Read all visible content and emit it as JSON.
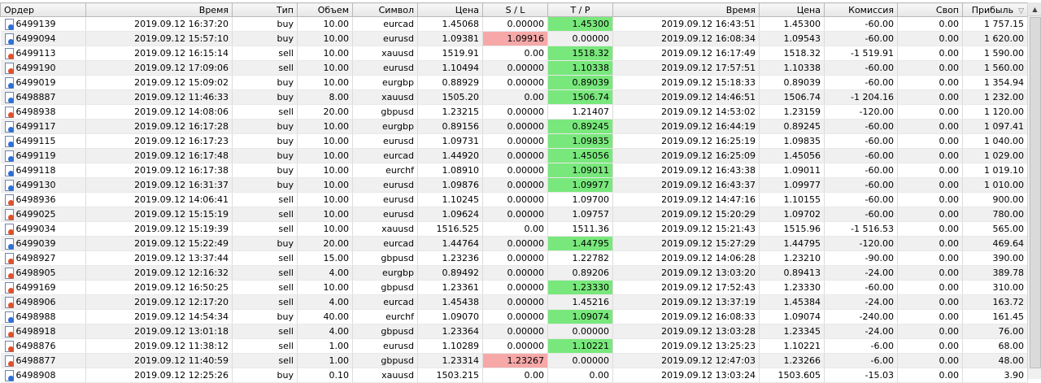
{
  "columns": {
    "order": "Ордер",
    "open_time": "Время",
    "type": "Тип",
    "volume": "Объем",
    "symbol": "Символ",
    "open_price": "Цена",
    "sl": "S / L",
    "tp": "T / P",
    "close_time": "Время",
    "close_price": "Цена",
    "commission": "Комиссия",
    "swap": "Своп",
    "profit": "Прибыль"
  },
  "sort_indicator": "▽",
  "scroll_up_glyph": "▲",
  "rows": [
    {
      "order": "6499139",
      "open_time": "2019.09.12 16:37:20",
      "type": "buy",
      "volume": "10.00",
      "symbol": "eurcad",
      "open_price": "1.45068",
      "sl": "0.00000",
      "tp": "1.45300",
      "close_time": "2019.09.12 16:43:51",
      "close_price": "1.45300",
      "commission": "-60.00",
      "swap": "0.00",
      "profit": "1 757.15",
      "tp_hit": true,
      "sl_hit": false
    },
    {
      "order": "6499094",
      "open_time": "2019.09.12 15:57:10",
      "type": "buy",
      "volume": "10.00",
      "symbol": "eurusd",
      "open_price": "1.09381",
      "sl": "1.09916",
      "tp": "0.00000",
      "close_time": "2019.09.12 16:08:34",
      "close_price": "1.09543",
      "commission": "-60.00",
      "swap": "0.00",
      "profit": "1 620.00",
      "tp_hit": false,
      "sl_hit": true
    },
    {
      "order": "6499113",
      "open_time": "2019.09.12 16:15:14",
      "type": "sell",
      "volume": "10.00",
      "symbol": "xauusd",
      "open_price": "1519.91",
      "sl": "0.00",
      "tp": "1518.32",
      "close_time": "2019.09.12 16:17:49",
      "close_price": "1518.32",
      "commission": "-1 519.91",
      "swap": "0.00",
      "profit": "1 590.00",
      "tp_hit": true,
      "sl_hit": false
    },
    {
      "order": "6499190",
      "open_time": "2019.09.12 17:09:06",
      "type": "sell",
      "volume": "10.00",
      "symbol": "eurusd",
      "open_price": "1.10494",
      "sl": "0.00000",
      "tp": "1.10338",
      "close_time": "2019.09.12 17:57:51",
      "close_price": "1.10338",
      "commission": "-60.00",
      "swap": "0.00",
      "profit": "1 560.00",
      "tp_hit": true,
      "sl_hit": false
    },
    {
      "order": "6499019",
      "open_time": "2019.09.12 15:09:02",
      "type": "buy",
      "volume": "10.00",
      "symbol": "eurgbp",
      "open_price": "0.88929",
      "sl": "0.00000",
      "tp": "0.89039",
      "close_time": "2019.09.12 15:18:33",
      "close_price": "0.89039",
      "commission": "-60.00",
      "swap": "0.00",
      "profit": "1 354.94",
      "tp_hit": true,
      "sl_hit": false
    },
    {
      "order": "6498887",
      "open_time": "2019.09.12 11:46:33",
      "type": "buy",
      "volume": "8.00",
      "symbol": "xauusd",
      "open_price": "1505.20",
      "sl": "0.00",
      "tp": "1506.74",
      "close_time": "2019.09.12 14:46:51",
      "close_price": "1506.74",
      "commission": "-1 204.16",
      "swap": "0.00",
      "profit": "1 232.00",
      "tp_hit": true,
      "sl_hit": false
    },
    {
      "order": "6498938",
      "open_time": "2019.09.12 14:08:06",
      "type": "sell",
      "volume": "20.00",
      "symbol": "gbpusd",
      "open_price": "1.23215",
      "sl": "0.00000",
      "tp": "1.21407",
      "close_time": "2019.09.12 14:53:02",
      "close_price": "1.23159",
      "commission": "-120.00",
      "swap": "0.00",
      "profit": "1 120.00",
      "tp_hit": false,
      "sl_hit": false
    },
    {
      "order": "6499117",
      "open_time": "2019.09.12 16:17:28",
      "type": "buy",
      "volume": "10.00",
      "symbol": "eurgbp",
      "open_price": "0.89156",
      "sl": "0.00000",
      "tp": "0.89245",
      "close_time": "2019.09.12 16:44:19",
      "close_price": "0.89245",
      "commission": "-60.00",
      "swap": "0.00",
      "profit": "1 097.41",
      "tp_hit": true,
      "sl_hit": false
    },
    {
      "order": "6499115",
      "open_time": "2019.09.12 16:17:23",
      "type": "buy",
      "volume": "10.00",
      "symbol": "eurusd",
      "open_price": "1.09731",
      "sl": "0.00000",
      "tp": "1.09835",
      "close_time": "2019.09.12 16:25:19",
      "close_price": "1.09835",
      "commission": "-60.00",
      "swap": "0.00",
      "profit": "1 040.00",
      "tp_hit": true,
      "sl_hit": false
    },
    {
      "order": "6499119",
      "open_time": "2019.09.12 16:17:48",
      "type": "buy",
      "volume": "10.00",
      "symbol": "eurcad",
      "open_price": "1.44920",
      "sl": "0.00000",
      "tp": "1.45056",
      "close_time": "2019.09.12 16:25:09",
      "close_price": "1.45056",
      "commission": "-60.00",
      "swap": "0.00",
      "profit": "1 029.00",
      "tp_hit": true,
      "sl_hit": false
    },
    {
      "order": "6499118",
      "open_time": "2019.09.12 16:17:38",
      "type": "buy",
      "volume": "10.00",
      "symbol": "eurchf",
      "open_price": "1.08910",
      "sl": "0.00000",
      "tp": "1.09011",
      "close_time": "2019.09.12 16:43:38",
      "close_price": "1.09011",
      "commission": "-60.00",
      "swap": "0.00",
      "profit": "1 019.10",
      "tp_hit": true,
      "sl_hit": false
    },
    {
      "order": "6499130",
      "open_time": "2019.09.12 16:31:37",
      "type": "buy",
      "volume": "10.00",
      "symbol": "eurusd",
      "open_price": "1.09876",
      "sl": "0.00000",
      "tp": "1.09977",
      "close_time": "2019.09.12 16:43:37",
      "close_price": "1.09977",
      "commission": "-60.00",
      "swap": "0.00",
      "profit": "1 010.00",
      "tp_hit": true,
      "sl_hit": false
    },
    {
      "order": "6498936",
      "open_time": "2019.09.12 14:06:41",
      "type": "sell",
      "volume": "10.00",
      "symbol": "eurusd",
      "open_price": "1.10245",
      "sl": "0.00000",
      "tp": "1.09700",
      "close_time": "2019.09.12 14:47:16",
      "close_price": "1.10155",
      "commission": "-60.00",
      "swap": "0.00",
      "profit": "900.00",
      "tp_hit": false,
      "sl_hit": false
    },
    {
      "order": "6499025",
      "open_time": "2019.09.12 15:15:19",
      "type": "sell",
      "volume": "10.00",
      "symbol": "eurusd",
      "open_price": "1.09624",
      "sl": "0.00000",
      "tp": "1.09757",
      "close_time": "2019.09.12 15:20:29",
      "close_price": "1.09702",
      "commission": "-60.00",
      "swap": "0.00",
      "profit": "780.00",
      "tp_hit": false,
      "sl_hit": false
    },
    {
      "order": "6499034",
      "open_time": "2019.09.12 15:19:39",
      "type": "sell",
      "volume": "10.00",
      "symbol": "xauusd",
      "open_price": "1516.525",
      "sl": "0.00",
      "tp": "1511.36",
      "close_time": "2019.09.12 15:21:43",
      "close_price": "1515.96",
      "commission": "-1 516.53",
      "swap": "0.00",
      "profit": "565.00",
      "tp_hit": false,
      "sl_hit": false
    },
    {
      "order": "6499039",
      "open_time": "2019.09.12 15:22:49",
      "type": "buy",
      "volume": "20.00",
      "symbol": "eurcad",
      "open_price": "1.44764",
      "sl": "0.00000",
      "tp": "1.44795",
      "close_time": "2019.09.12 15:27:29",
      "close_price": "1.44795",
      "commission": "-120.00",
      "swap": "0.00",
      "profit": "469.64",
      "tp_hit": true,
      "sl_hit": false
    },
    {
      "order": "6498927",
      "open_time": "2019.09.12 13:37:44",
      "type": "sell",
      "volume": "15.00",
      "symbol": "gbpusd",
      "open_price": "1.23236",
      "sl": "0.00000",
      "tp": "1.22782",
      "close_time": "2019.09.12 14:06:28",
      "close_price": "1.23210",
      "commission": "-90.00",
      "swap": "0.00",
      "profit": "390.00",
      "tp_hit": false,
      "sl_hit": false
    },
    {
      "order": "6498905",
      "open_time": "2019.09.12 12:16:32",
      "type": "sell",
      "volume": "4.00",
      "symbol": "eurgbp",
      "open_price": "0.89492",
      "sl": "0.00000",
      "tp": "0.89206",
      "close_time": "2019.09.12 13:03:20",
      "close_price": "0.89413",
      "commission": "-24.00",
      "swap": "0.00",
      "profit": "389.78",
      "tp_hit": false,
      "sl_hit": false
    },
    {
      "order": "6499169",
      "open_time": "2019.09.12 16:50:25",
      "type": "sell",
      "volume": "10.00",
      "symbol": "gbpusd",
      "open_price": "1.23361",
      "sl": "0.00000",
      "tp": "1.23330",
      "close_time": "2019.09.12 17:52:43",
      "close_price": "1.23330",
      "commission": "-60.00",
      "swap": "0.00",
      "profit": "310.00",
      "tp_hit": true,
      "sl_hit": false
    },
    {
      "order": "6498906",
      "open_time": "2019.09.12 12:17:20",
      "type": "sell",
      "volume": "4.00",
      "symbol": "eurcad",
      "open_price": "1.45438",
      "sl": "0.00000",
      "tp": "1.45216",
      "close_time": "2019.09.12 13:37:19",
      "close_price": "1.45384",
      "commission": "-24.00",
      "swap": "0.00",
      "profit": "163.72",
      "tp_hit": false,
      "sl_hit": false
    },
    {
      "order": "6498988",
      "open_time": "2019.09.12 14:54:34",
      "type": "buy",
      "volume": "40.00",
      "symbol": "eurchf",
      "open_price": "1.09070",
      "sl": "0.00000",
      "tp": "1.09074",
      "close_time": "2019.09.12 16:08:33",
      "close_price": "1.09074",
      "commission": "-240.00",
      "swap": "0.00",
      "profit": "161.45",
      "tp_hit": true,
      "sl_hit": false
    },
    {
      "order": "6498918",
      "open_time": "2019.09.12 13:01:18",
      "type": "sell",
      "volume": "4.00",
      "symbol": "gbpusd",
      "open_price": "1.23364",
      "sl": "0.00000",
      "tp": "0.00000",
      "close_time": "2019.09.12 13:03:28",
      "close_price": "1.23345",
      "commission": "-24.00",
      "swap": "0.00",
      "profit": "76.00",
      "tp_hit": false,
      "sl_hit": false
    },
    {
      "order": "6498876",
      "open_time": "2019.09.12 11:38:12",
      "type": "sell",
      "volume": "1.00",
      "symbol": "eurusd",
      "open_price": "1.10289",
      "sl": "0.00000",
      "tp": "1.10221",
      "close_time": "2019.09.12 13:25:23",
      "close_price": "1.10221",
      "commission": "-6.00",
      "swap": "0.00",
      "profit": "68.00",
      "tp_hit": true,
      "sl_hit": false
    },
    {
      "order": "6498877",
      "open_time": "2019.09.12 11:40:59",
      "type": "sell",
      "volume": "1.00",
      "symbol": "gbpusd",
      "open_price": "1.23314",
      "sl": "1.23267",
      "tp": "0.00000",
      "close_time": "2019.09.12 12:47:03",
      "close_price": "1.23266",
      "commission": "-6.00",
      "swap": "0.00",
      "profit": "48.00",
      "tp_hit": false,
      "sl_hit": true
    },
    {
      "order": "6498908",
      "open_time": "2019.09.12 12:25:26",
      "type": "buy",
      "volume": "0.10",
      "symbol": "xauusd",
      "open_price": "1503.215",
      "sl": "0.00",
      "tp": "0.00",
      "close_time": "2019.09.12 13:03:24",
      "close_price": "1503.605",
      "commission": "-15.03",
      "swap": "0.00",
      "profit": "3.90",
      "tp_hit": false,
      "sl_hit": false
    }
  ],
  "colors": {
    "tp_hit": "#79e87c",
    "sl_hit": "#f6a8a8",
    "row_alt": "#f0f0f0"
  }
}
